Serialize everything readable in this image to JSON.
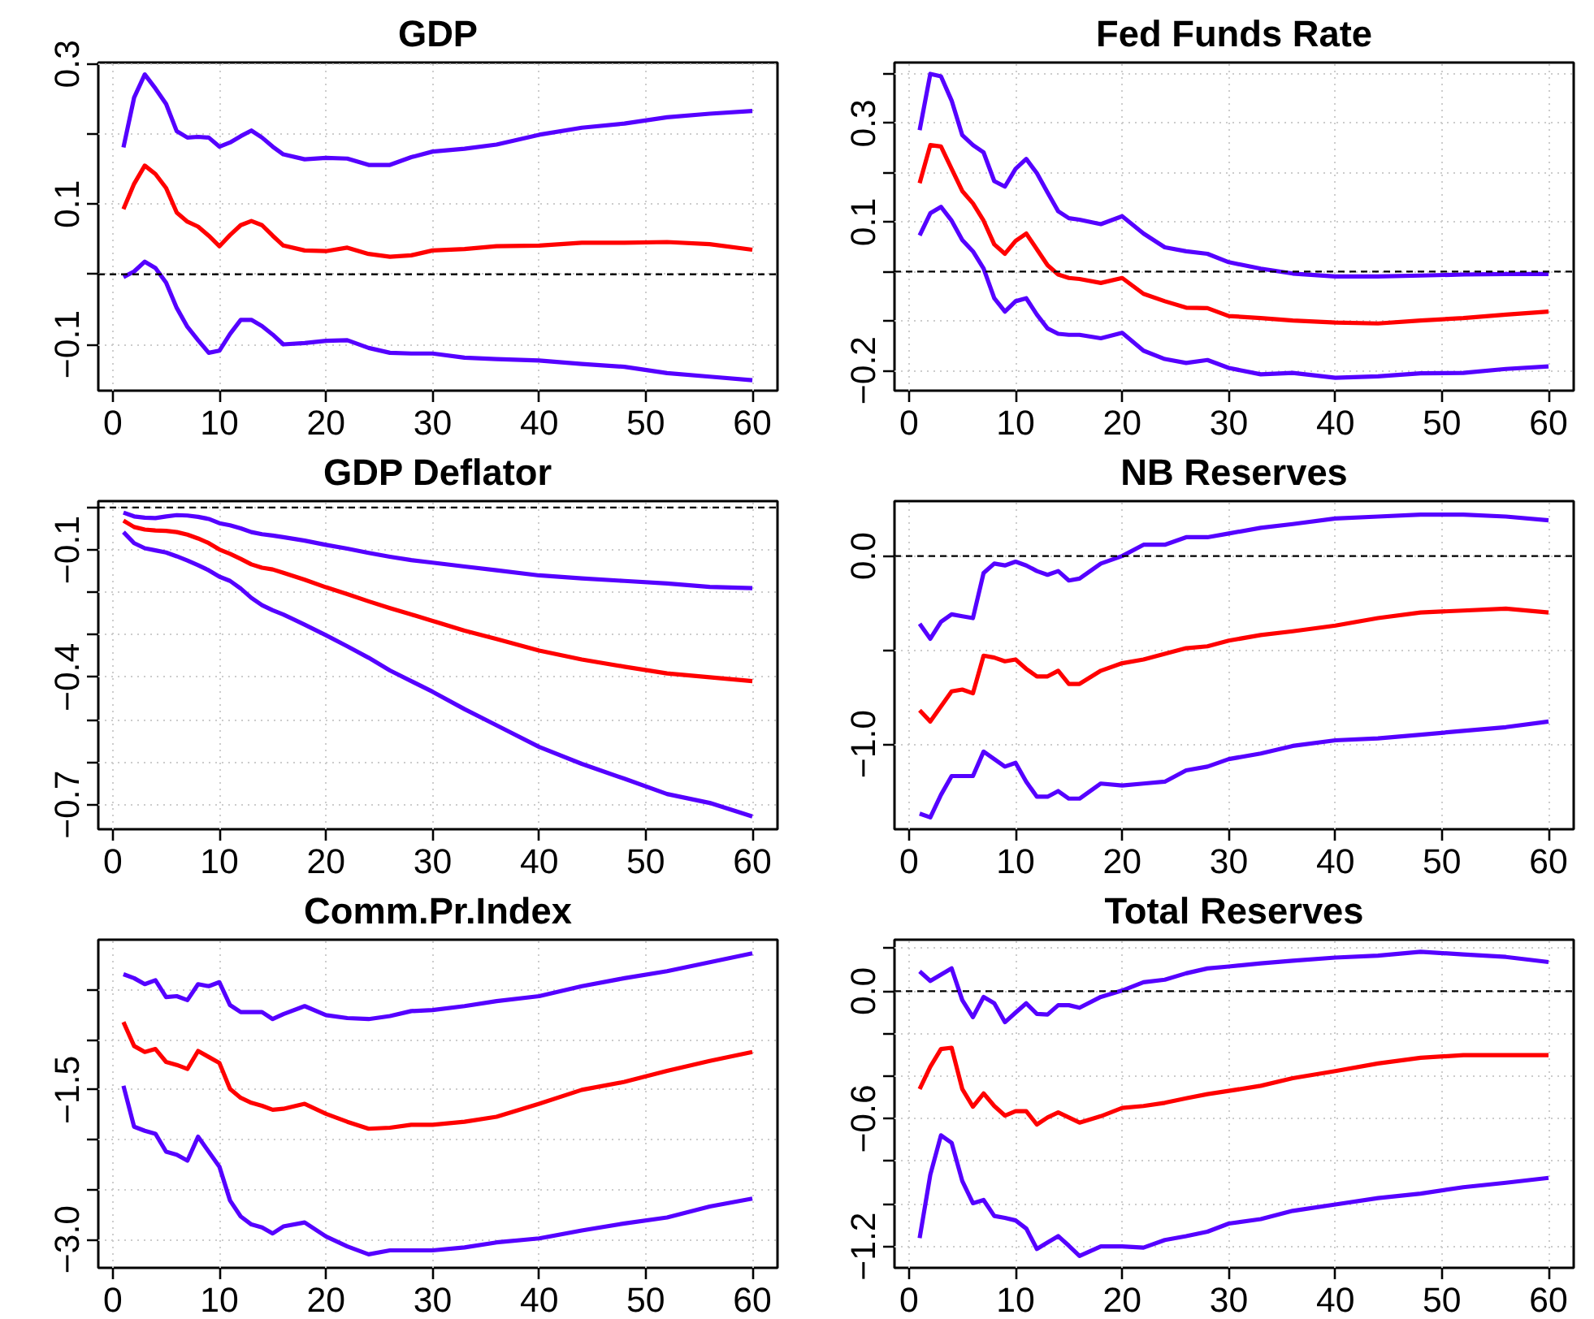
{
  "chart_data": [
    {
      "type": "line",
      "title": "GDP",
      "x": [
        1,
        2,
        3,
        4,
        5,
        6,
        7,
        8,
        9,
        10,
        11,
        12,
        13,
        14,
        15,
        16,
        18,
        20,
        22,
        24,
        26,
        28,
        30,
        33,
        36,
        40,
        44,
        48,
        52,
        56,
        60
      ],
      "xlim": [
        -1.36,
        62.36
      ],
      "xticks": [
        0,
        10,
        20,
        30,
        40,
        50,
        60
      ],
      "ylim": [
        -0.166,
        0.302
      ],
      "yticks": [
        {
          "value": -0.1,
          "label": "−0.1"
        },
        {
          "value": 0.0,
          "label": null
        },
        {
          "value": 0.1,
          "label": "0.1"
        },
        {
          "value": 0.2,
          "label": null
        },
        {
          "value": 0.3,
          "label": "0.3"
        }
      ],
      "grid": true,
      "line_style": "solid",
      "marker": "none",
      "ref_lines": [
        {
          "axis": "y",
          "value": 0,
          "color": "#000000",
          "line_style": "dashed"
        }
      ],
      "series": [
        {
          "color": "#5500ff",
          "values": [
            0.181,
            0.252,
            0.285,
            0.265,
            0.243,
            0.204,
            0.195,
            0.196,
            0.195,
            0.182,
            0.188,
            0.197,
            0.205,
            0.195,
            0.182,
            0.171,
            0.164,
            0.166,
            0.165,
            0.156,
            0.156,
            0.167,
            0.175,
            0.179,
            0.185,
            0.199,
            0.209,
            0.215,
            0.224,
            0.229,
            0.233
          ]
        },
        {
          "color": "#ff0000",
          "values": [
            0.093,
            0.129,
            0.155,
            0.143,
            0.123,
            0.088,
            0.075,
            0.068,
            0.055,
            0.04,
            0.056,
            0.07,
            0.076,
            0.07,
            0.055,
            0.041,
            0.034,
            0.033,
            0.038,
            0.029,
            0.025,
            0.027,
            0.034,
            0.036,
            0.04,
            0.041,
            0.045,
            0.045,
            0.046,
            0.043,
            0.035
          ]
        },
        {
          "color": "#5500ff",
          "values": [
            -0.004,
            0.004,
            0.018,
            0.009,
            -0.012,
            -0.048,
            -0.075,
            -0.094,
            -0.112,
            -0.109,
            -0.085,
            -0.065,
            -0.065,
            -0.074,
            -0.086,
            -0.1,
            -0.098,
            -0.095,
            -0.094,
            -0.105,
            -0.112,
            -0.113,
            -0.113,
            -0.119,
            -0.121,
            -0.123,
            -0.128,
            -0.132,
            -0.141,
            -0.146,
            -0.151
          ]
        }
      ]
    },
    {
      "type": "line",
      "title": "Fed Funds Rate",
      "x": [
        1,
        2,
        3,
        4,
        5,
        6,
        7,
        8,
        9,
        10,
        11,
        12,
        13,
        14,
        15,
        16,
        18,
        20,
        22,
        24,
        26,
        28,
        30,
        33,
        36,
        40,
        44,
        48,
        52,
        56,
        60
      ],
      "xlim": [
        -1.36,
        62.36
      ],
      "xticks": [
        0,
        10,
        20,
        30,
        40,
        50,
        60
      ],
      "ylim": [
        -0.241,
        0.423
      ],
      "yticks": [
        {
          "value": -0.2,
          "label": "−0.2"
        },
        {
          "value": -0.1,
          "label": null
        },
        {
          "value": 0.0,
          "label": null
        },
        {
          "value": 0.1,
          "label": "0.1"
        },
        {
          "value": 0.2,
          "label": null
        },
        {
          "value": 0.3,
          "label": "0.3"
        },
        {
          "value": 0.4,
          "label": null
        }
      ],
      "grid": true,
      "line_style": "solid",
      "marker": "none",
      "ref_lines": [
        {
          "axis": "y",
          "value": 0,
          "color": "#000000",
          "line_style": "dashed"
        }
      ],
      "series": [
        {
          "color": "#5500ff",
          "values": [
            0.286,
            0.4,
            0.395,
            0.346,
            0.276,
            0.256,
            0.241,
            0.183,
            0.172,
            0.208,
            0.228,
            0.199,
            0.16,
            0.122,
            0.108,
            0.105,
            0.096,
            0.112,
            0.077,
            0.049,
            0.041,
            0.036,
            0.019,
            0.006,
            -0.004,
            -0.01,
            -0.01,
            -0.008,
            -0.006,
            -0.005,
            -0.005
          ]
        },
        {
          "color": "#ff0000",
          "values": [
            0.179,
            0.256,
            0.253,
            0.208,
            0.163,
            0.138,
            0.103,
            0.055,
            0.036,
            0.062,
            0.077,
            0.045,
            0.013,
            -0.006,
            -0.013,
            -0.015,
            -0.023,
            -0.013,
            -0.045,
            -0.06,
            -0.073,
            -0.074,
            -0.09,
            -0.094,
            -0.099,
            -0.103,
            -0.105,
            -0.099,
            -0.094,
            -0.087,
            -0.081
          ]
        },
        {
          "color": "#5500ff",
          "values": [
            0.073,
            0.118,
            0.131,
            0.103,
            0.064,
            0.041,
            0.006,
            -0.054,
            -0.081,
            -0.06,
            -0.054,
            -0.087,
            -0.115,
            -0.126,
            -0.128,
            -0.128,
            -0.135,
            -0.124,
            -0.16,
            -0.177,
            -0.185,
            -0.179,
            -0.195,
            -0.208,
            -0.205,
            -0.215,
            -0.212,
            -0.206,
            -0.205,
            -0.197,
            -0.192
          ]
        }
      ]
    },
    {
      "type": "line",
      "title": "GDP Deflator",
      "x": [
        1,
        2,
        3,
        4,
        5,
        6,
        7,
        8,
        9,
        10,
        11,
        12,
        13,
        14,
        15,
        16,
        18,
        20,
        22,
        24,
        26,
        28,
        30,
        33,
        36,
        40,
        44,
        48,
        52,
        56,
        60
      ],
      "xlim": [
        -1.36,
        62.36
      ],
      "xticks": [
        0,
        10,
        20,
        30,
        40,
        50,
        60
      ],
      "ylim": [
        -0.758,
        0.015
      ],
      "yticks": [
        {
          "value": -0.7,
          "label": "−0.7"
        },
        {
          "value": -0.6,
          "label": null
        },
        {
          "value": -0.5,
          "label": null
        },
        {
          "value": -0.4,
          "label": "−0.4"
        },
        {
          "value": -0.3,
          "label": null
        },
        {
          "value": -0.2,
          "label": null
        },
        {
          "value": -0.1,
          "label": "−0.1"
        },
        {
          "value": 0.0,
          "label": null
        }
      ],
      "grid": true,
      "line_style": "solid",
      "marker": "none",
      "ref_lines": [
        {
          "axis": "y",
          "value": 0,
          "color": "#000000",
          "line_style": "dashed"
        }
      ],
      "series": [
        {
          "color": "#5500ff",
          "values": [
            -0.012,
            -0.021,
            -0.024,
            -0.025,
            -0.021,
            -0.018,
            -0.019,
            -0.022,
            -0.027,
            -0.037,
            -0.042,
            -0.049,
            -0.058,
            -0.063,
            -0.066,
            -0.07,
            -0.078,
            -0.088,
            -0.097,
            -0.107,
            -0.116,
            -0.124,
            -0.13,
            -0.139,
            -0.148,
            -0.16,
            -0.167,
            -0.173,
            -0.179,
            -0.187,
            -0.19
          ]
        },
        {
          "color": "#ff0000",
          "values": [
            -0.031,
            -0.046,
            -0.052,
            -0.054,
            -0.055,
            -0.058,
            -0.064,
            -0.073,
            -0.084,
            -0.099,
            -0.109,
            -0.121,
            -0.134,
            -0.142,
            -0.146,
            -0.154,
            -0.17,
            -0.188,
            -0.204,
            -0.221,
            -0.237,
            -0.252,
            -0.267,
            -0.29,
            -0.31,
            -0.337,
            -0.358,
            -0.375,
            -0.391,
            -0.4,
            -0.409
          ]
        },
        {
          "color": "#5500ff",
          "values": [
            -0.058,
            -0.084,
            -0.096,
            -0.101,
            -0.106,
            -0.115,
            -0.125,
            -0.136,
            -0.148,
            -0.163,
            -0.173,
            -0.191,
            -0.213,
            -0.23,
            -0.242,
            -0.252,
            -0.276,
            -0.301,
            -0.327,
            -0.354,
            -0.384,
            -0.409,
            -0.434,
            -0.475,
            -0.513,
            -0.564,
            -0.604,
            -0.639,
            -0.675,
            -0.696,
            -0.728
          ]
        }
      ]
    },
    {
      "type": "line",
      "title": "NB Reserves",
      "x": [
        1,
        2,
        3,
        4,
        5,
        6,
        7,
        8,
        9,
        10,
        11,
        12,
        13,
        14,
        15,
        16,
        18,
        20,
        22,
        24,
        26,
        28,
        30,
        33,
        36,
        40,
        44,
        48,
        52,
        56,
        60
      ],
      "xlim": [
        -1.36,
        62.36
      ],
      "xticks": [
        0,
        10,
        20,
        30,
        40,
        50,
        60
      ],
      "ylim": [
        -1.453,
        0.292
      ],
      "yticks": [
        {
          "value": -1.0,
          "label": "−1.0"
        },
        {
          "value": -0.5,
          "label": null
        },
        {
          "value": 0.0,
          "label": "0.0"
        }
      ],
      "grid": true,
      "line_style": "solid",
      "marker": "none",
      "ref_lines": [
        {
          "axis": "y",
          "value": 0,
          "color": "#000000",
          "line_style": "dashed"
        }
      ],
      "series": [
        {
          "color": "#5500ff",
          "values": [
            -0.36,
            -0.44,
            -0.35,
            -0.31,
            -0.32,
            -0.33,
            -0.09,
            -0.04,
            -0.05,
            -0.03,
            -0.05,
            -0.08,
            -0.1,
            -0.08,
            -0.13,
            -0.12,
            -0.04,
            0.0,
            0.06,
            0.06,
            0.1,
            0.1,
            0.12,
            0.15,
            0.17,
            0.2,
            0.21,
            0.22,
            0.22,
            0.21,
            0.19
          ]
        },
        {
          "color": "#ff0000",
          "values": [
            -0.82,
            -0.88,
            -0.8,
            -0.72,
            -0.71,
            -0.73,
            -0.53,
            -0.54,
            -0.56,
            -0.55,
            -0.6,
            -0.64,
            -0.64,
            -0.61,
            -0.68,
            -0.68,
            -0.61,
            -0.57,
            -0.55,
            -0.52,
            -0.49,
            -0.48,
            -0.45,
            -0.42,
            -0.4,
            -0.37,
            -0.33,
            -0.3,
            -0.29,
            -0.28,
            -0.3
          ]
        },
        {
          "color": "#5500ff",
          "values": [
            -1.37,
            -1.39,
            -1.27,
            -1.17,
            -1.17,
            -1.17,
            -1.04,
            -1.08,
            -1.12,
            -1.1,
            -1.2,
            -1.28,
            -1.28,
            -1.25,
            -1.29,
            -1.29,
            -1.21,
            -1.22,
            -1.21,
            -1.2,
            -1.14,
            -1.12,
            -1.08,
            -1.05,
            -1.01,
            -0.98,
            -0.97,
            -0.95,
            -0.93,
            -0.91,
            -0.88
          ]
        }
      ]
    },
    {
      "type": "line",
      "title": "Comm.Pr.Index",
      "x": [
        1,
        2,
        3,
        4,
        5,
        6,
        7,
        8,
        9,
        10,
        11,
        12,
        13,
        14,
        15,
        16,
        18,
        20,
        22,
        24,
        26,
        28,
        30,
        33,
        36,
        40,
        44,
        48,
        52,
        56,
        60
      ],
      "xlim": [
        -1.36,
        62.36
      ],
      "xticks": [
        0,
        10,
        20,
        30,
        40,
        50,
        60
      ],
      "ylim": [
        -3.285,
        0.006
      ],
      "yticks": [
        {
          "value": -3.0,
          "label": "−3.0"
        },
        {
          "value": -2.5,
          "label": null
        },
        {
          "value": -2.0,
          "label": null
        },
        {
          "value": -1.5,
          "label": "−1.5"
        },
        {
          "value": -1.0,
          "label": null
        },
        {
          "value": -0.5,
          "label": null
        }
      ],
      "grid": true,
      "line_style": "solid",
      "marker": "none",
      "series": [
        {
          "color": "#5500ff",
          "values": [
            -0.34,
            -0.38,
            -0.44,
            -0.4,
            -0.57,
            -0.56,
            -0.6,
            -0.44,
            -0.46,
            -0.42,
            -0.65,
            -0.72,
            -0.72,
            -0.72,
            -0.79,
            -0.74,
            -0.66,
            -0.75,
            -0.78,
            -0.79,
            -0.76,
            -0.71,
            -0.7,
            -0.66,
            -0.61,
            -0.56,
            -0.46,
            -0.38,
            -0.31,
            -0.22,
            -0.13
          ]
        },
        {
          "color": "#ff0000",
          "values": [
            -0.82,
            -1.06,
            -1.12,
            -1.09,
            -1.22,
            -1.25,
            -1.29,
            -1.11,
            -1.17,
            -1.23,
            -1.49,
            -1.58,
            -1.63,
            -1.66,
            -1.7,
            -1.69,
            -1.64,
            -1.74,
            -1.82,
            -1.89,
            -1.88,
            -1.85,
            -1.85,
            -1.82,
            -1.77,
            -1.64,
            -1.5,
            -1.42,
            -1.31,
            -1.21,
            -1.12
          ]
        },
        {
          "color": "#5500ff",
          "values": [
            -1.46,
            -1.87,
            -1.91,
            -1.94,
            -2.12,
            -2.15,
            -2.21,
            -1.97,
            -2.12,
            -2.27,
            -2.61,
            -2.77,
            -2.85,
            -2.88,
            -2.94,
            -2.87,
            -2.83,
            -2.97,
            -3.07,
            -3.15,
            -3.11,
            -3.11,
            -3.11,
            -3.08,
            -3.03,
            -2.99,
            -2.91,
            -2.84,
            -2.78,
            -2.67,
            -2.59
          ]
        }
      ]
    },
    {
      "type": "line",
      "title": "Total Reserves",
      "x": [
        1,
        2,
        3,
        4,
        5,
        6,
        7,
        8,
        9,
        10,
        11,
        12,
        13,
        14,
        15,
        16,
        18,
        20,
        22,
        24,
        26,
        28,
        30,
        33,
        36,
        40,
        44,
        48,
        52,
        56,
        60
      ],
      "xlim": [
        -1.36,
        62.36
      ],
      "xticks": [
        0,
        10,
        20,
        30,
        40,
        50,
        60
      ],
      "ylim": [
        -1.301,
        0.242
      ],
      "yticks": [
        {
          "value": -1.2,
          "label": "−1.2"
        },
        {
          "value": -1.0,
          "label": null
        },
        {
          "value": -0.8,
          "label": null
        },
        {
          "value": -0.6,
          "label": "−0.6"
        },
        {
          "value": -0.4,
          "label": null
        },
        {
          "value": -0.2,
          "label": null
        },
        {
          "value": 0.0,
          "label": "0.0"
        },
        {
          "value": 0.2,
          "label": null
        }
      ],
      "grid": true,
      "line_style": "solid",
      "marker": "none",
      "ref_lines": [
        {
          "axis": "y",
          "value": 0,
          "color": "#000000",
          "line_style": "dashed"
        }
      ],
      "series": [
        {
          "color": "#5500ff",
          "values": [
            0.093,
            0.048,
            0.078,
            0.107,
            -0.042,
            -0.122,
            -0.027,
            -0.057,
            -0.146,
            -0.101,
            -0.057,
            -0.107,
            -0.11,
            -0.066,
            -0.066,
            -0.078,
            -0.027,
            0.003,
            0.042,
            0.054,
            0.084,
            0.107,
            0.116,
            0.131,
            0.143,
            0.158,
            0.167,
            0.185,
            0.173,
            0.161,
            0.137
          ]
        },
        {
          "color": "#ff0000",
          "values": [
            -0.46,
            -0.355,
            -0.272,
            -0.266,
            -0.46,
            -0.543,
            -0.481,
            -0.54,
            -0.585,
            -0.564,
            -0.564,
            -0.627,
            -0.594,
            -0.57,
            -0.594,
            -0.618,
            -0.588,
            -0.549,
            -0.54,
            -0.525,
            -0.504,
            -0.484,
            -0.469,
            -0.445,
            -0.409,
            -0.376,
            -0.34,
            -0.313,
            -0.301,
            -0.301,
            -0.301
          ]
        },
        {
          "color": "#5500ff",
          "values": [
            -1.161,
            -0.863,
            -0.678,
            -0.713,
            -0.893,
            -0.997,
            -0.982,
            -1.057,
            -1.066,
            -1.078,
            -1.116,
            -1.212,
            -1.182,
            -1.152,
            -1.197,
            -1.245,
            -1.2,
            -1.2,
            -1.206,
            -1.17,
            -1.152,
            -1.131,
            -1.093,
            -1.072,
            -1.033,
            -1.003,
            -0.973,
            -0.952,
            -0.922,
            -0.901,
            -0.878
          ]
        }
      ]
    }
  ]
}
